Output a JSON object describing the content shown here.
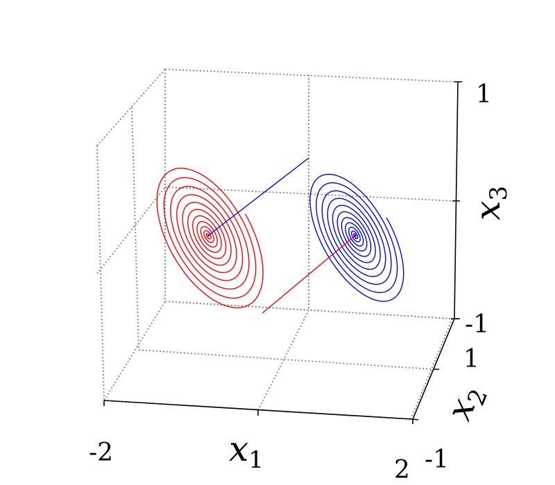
{
  "chart_data": {
    "type": "line",
    "projection": "3d",
    "grid": true,
    "axes": {
      "x": {
        "symbol": "x",
        "subscript": "1",
        "ticks": [
          -2,
          2
        ],
        "tick_labels": [
          "-2",
          "2"
        ]
      },
      "y": {
        "symbol": "x",
        "subscript": "2",
        "ticks": [
          -1,
          1
        ],
        "tick_labels": [
          "-1",
          "1"
        ]
      },
      "z": {
        "symbol": "x",
        "subscript": "3",
        "ticks": [
          -1,
          1
        ],
        "tick_labels": [
          "-1",
          "1"
        ]
      }
    },
    "series": [
      {
        "color": "#ff0000",
        "description": "spiral converging to center near (-1.2, 0, 0.2), with a straight segment from the right spiral",
        "center": [
          -1.2,
          0.0,
          0.2
        ],
        "outer_radius": 0.9,
        "turns": 12
      },
      {
        "color": "#0000ff",
        "description": "spiral converging to center near (1.2, 0, 0.2), with a straight segment from the left spiral",
        "center": [
          1.2,
          0.0,
          0.2
        ],
        "outer_radius": 0.7,
        "turns": 12
      }
    ]
  }
}
